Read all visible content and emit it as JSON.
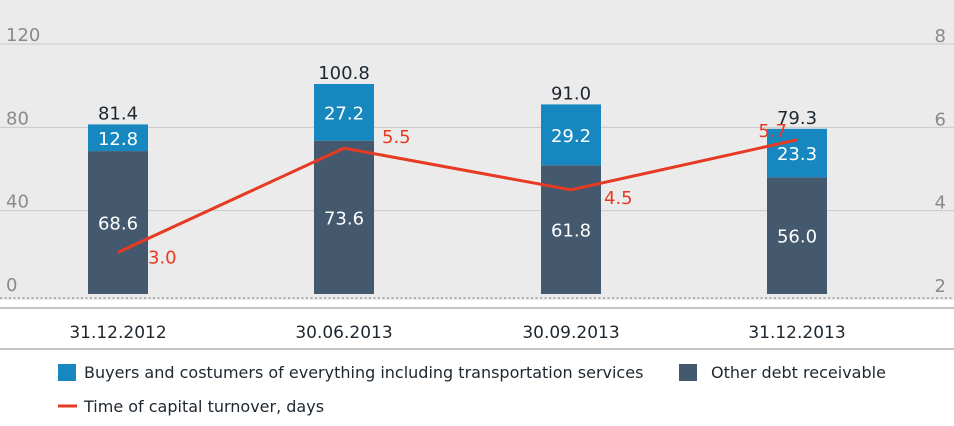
{
  "chart_data": {
    "type": "bar",
    "categories": [
      "31.12.2012",
      "30.06.2013",
      "30.09.2013",
      "31.12.2013"
    ],
    "series": [
      {
        "name": "Other debt receivable",
        "kind": "bar-stack",
        "values": [
          68.6,
          73.6,
          61.8,
          56.0
        ],
        "labels": [
          "68.6",
          "73.6",
          "61.8",
          "56.0"
        ],
        "color": "#44596d"
      },
      {
        "name": "Buyers and costumers of everything including transportation services",
        "kind": "bar-stack",
        "values": [
          12.8,
          27.2,
          29.2,
          23.3
        ],
        "labels": [
          "12.8",
          "27.2",
          "29.2",
          "23.3"
        ],
        "color": "#1787bf"
      },
      {
        "name": "Time of capital turnover, days",
        "kind": "line",
        "axis": "right",
        "values": [
          3.0,
          5.5,
          4.5,
          5.7
        ],
        "labels": [
          "3.0",
          "5.5",
          "4.5",
          "5.7"
        ],
        "color": "#e63a23"
      }
    ],
    "totals": [
      "81.4",
      "100.8",
      "91.0",
      "79.3"
    ],
    "y_left": {
      "ticks": [
        "0",
        "40",
        "80",
        "120"
      ],
      "ylim": [
        0,
        120
      ]
    },
    "y_right": {
      "ticks": [
        "2",
        "4",
        "6",
        "8"
      ],
      "ylim": [
        2,
        8
      ]
    },
    "grid": true,
    "legend_position": "bottom-left",
    "colors": {
      "plot_bg": "#ebebeb",
      "grid": "#c9c9c9",
      "tick": "#8a8a8a",
      "label": "#1d2730"
    }
  }
}
